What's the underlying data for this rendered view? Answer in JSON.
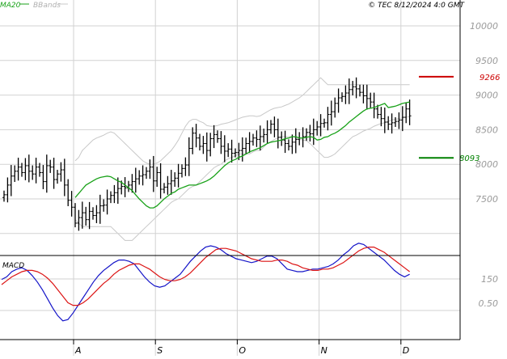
{
  "header": {
    "ma_label": "MA20",
    "bb_label": "BBands",
    "copyright": "© TEC 8/12/2024 4:0 GMT"
  },
  "colors": {
    "ma": "#19a219",
    "bbands": "#c8c8c8",
    "bars": "#000000",
    "macd_line": "#1414c8",
    "macd_signal": "#dc1414",
    "resistance": "#cc0000",
    "support": "#008000",
    "grid": "#d2d2d2",
    "axis_text": "#999999"
  },
  "chart_data": [
    {
      "type": "ohlc",
      "title": "",
      "y_ticks": [
        7500,
        8000,
        8500,
        9000,
        9500,
        10000
      ],
      "y_tick_labels": [
        "7500",
        "8000",
        "8500",
        "9000",
        "9500",
        "10000"
      ],
      "ylim": [
        6900,
        10400
      ],
      "x_ticks": [
        {
          "label": "A",
          "index": 20
        },
        {
          "label": "S",
          "index": 43
        },
        {
          "label": "O",
          "index": 66
        },
        {
          "label": "N",
          "index": 89
        },
        {
          "label": "D",
          "index": 112
        }
      ],
      "levels": [
        {
          "name": "resistance",
          "value": 9266,
          "label": "9266"
        },
        {
          "name": "support",
          "value": 8093,
          "label": "8093"
        }
      ],
      "close": [
        7560,
        7700,
        7830,
        7900,
        7960,
        7880,
        7980,
        7900,
        7860,
        7960,
        7880,
        7750,
        7980,
        7960,
        7780,
        7860,
        7920,
        7700,
        7480,
        7380,
        7150,
        7230,
        7300,
        7200,
        7320,
        7260,
        7300,
        7400,
        7410,
        7500,
        7550,
        7590,
        7650,
        7680,
        7660,
        7700,
        7750,
        7790,
        7830,
        7850,
        7900,
        7960,
        7760,
        7880,
        7640,
        7670,
        7720,
        7760,
        7800,
        7870,
        7940,
        7990,
        8230,
        8450,
        8380,
        8260,
        8300,
        8200,
        8370,
        8430,
        8370,
        8260,
        8190,
        8220,
        8160,
        8170,
        8200,
        8230,
        8300,
        8330,
        8380,
        8360,
        8400,
        8430,
        8500,
        8580,
        8500,
        8390,
        8350,
        8300,
        8260,
        8320,
        8360,
        8380,
        8400,
        8460,
        8440,
        8500,
        8540,
        8590,
        8600,
        8720,
        8760,
        8880,
        8960,
        8980,
        9030,
        9080,
        9120,
        9090,
        9040,
        8990,
        8950,
        8900,
        8800,
        8720,
        8660,
        8610,
        8580,
        8600,
        8620,
        8640,
        8680,
        8800,
        8700
      ],
      "ma20": [
        7520,
        7580,
        7640,
        7700,
        7730,
        7760,
        7790,
        7810,
        7820,
        7830,
        7820,
        7790,
        7760,
        7740,
        7700,
        7660,
        7620,
        7560,
        7500,
        7450,
        7400,
        7370,
        7370,
        7400,
        7450,
        7500,
        7540,
        7580,
        7600,
        7640,
        7660,
        7680,
        7700,
        7700,
        7700,
        7720,
        7740,
        7760,
        7790,
        7830,
        7880,
        7930,
        7980,
        8020,
        8050,
        8070,
        8100,
        8120,
        8150,
        8180,
        8200,
        8220,
        8240,
        8270,
        8300,
        8320,
        8330,
        8340,
        8350,
        8370,
        8380,
        8400,
        8400,
        8380,
        8380,
        8390,
        8400,
        8390,
        8350,
        8360,
        8390,
        8400,
        8430,
        8450,
        8480,
        8520,
        8560,
        8610,
        8650,
        8690,
        8730,
        8770,
        8800,
        8810,
        8820,
        8840,
        8860,
        8880,
        8820,
        8830,
        8840,
        8860,
        8880,
        8890,
        8900
      ],
      "bb_upper": [
        8050,
        8100,
        8200,
        8250,
        8300,
        8350,
        8380,
        8400,
        8420,
        8450,
        8470,
        8450,
        8400,
        8350,
        8300,
        8250,
        8200,
        8150,
        8100,
        8050,
        8020,
        8000,
        8000,
        8020,
        8050,
        8100,
        8150,
        8200,
        8270,
        8350,
        8450,
        8550,
        8620,
        8650,
        8650,
        8620,
        8600,
        8560,
        8550,
        8550,
        8560,
        8580,
        8590,
        8600,
        8620,
        8640,
        8660,
        8680,
        8690,
        8700,
        8700,
        8690,
        8700,
        8730,
        8760,
        8790,
        8810,
        8820,
        8830,
        8850,
        8870,
        8900,
        8930,
        8960,
        9000,
        9050,
        9100,
        9150,
        9200,
        9250,
        9200,
        9150,
        9150,
        9150,
        9150,
        9150,
        9150,
        9150,
        9150,
        9150,
        9150,
        9150,
        9150,
        9150,
        9150,
        9150,
        9150,
        9150,
        9150,
        9150,
        9150,
        9150,
        9150,
        9150,
        9150
      ],
      "bb_lower": [
        7200,
        7150,
        7100,
        7100,
        7100,
        7100,
        7100,
        7100,
        7100,
        7100,
        7100,
        7050,
        7000,
        6950,
        6900,
        6900,
        6900,
        6950,
        7000,
        7050,
        7100,
        7150,
        7200,
        7250,
        7300,
        7350,
        7400,
        7450,
        7480,
        7500,
        7550,
        7600,
        7650,
        7680,
        7700,
        7750,
        7800,
        7850,
        7900,
        7950,
        7980,
        8000,
        8050,
        8080,
        8100,
        8120,
        8150,
        8150,
        8150,
        8150,
        8180,
        8200,
        8200,
        8250,
        8300,
        8330,
        8360,
        8380,
        8400,
        8400,
        8400,
        8400,
        8380,
        8360,
        8350,
        8340,
        8300,
        8250,
        8200,
        8150,
        8100,
        8100,
        8120,
        8150,
        8200,
        8250,
        8300,
        8350,
        8400,
        8420,
        8450,
        8480,
        8500,
        8520,
        8550,
        8570,
        8590,
        8600,
        8620,
        8640,
        8650,
        8660,
        8670,
        8680,
        8690
      ],
      "ma_start_index": 20
    },
    {
      "type": "line",
      "title": "",
      "label": "MACD",
      "y_tick_labels": [
        "150",
        "0.50"
      ],
      "series": [
        {
          "role": "macd",
          "values": [
            1.0,
            1.2,
            1.6,
            1.8,
            1.9,
            1.7,
            1.3,
            0.8,
            0.2,
            -0.5,
            -1.2,
            -1.8,
            -2.2,
            -2.1,
            -1.6,
            -1.0,
            -0.4,
            0.2,
            0.8,
            1.3,
            1.7,
            2.0,
            2.3,
            2.5,
            2.5,
            2.4,
            2.2,
            1.7,
            1.2,
            0.8,
            0.5,
            0.4,
            0.5,
            0.8,
            1.1,
            1.4,
            1.9,
            2.4,
            2.8,
            3.2,
            3.5,
            3.6,
            3.5,
            3.3,
            3.0,
            2.8,
            2.6,
            2.5,
            2.4,
            2.3,
            2.4,
            2.6,
            2.8,
            2.8,
            2.6,
            2.2,
            1.8,
            1.7,
            1.6,
            1.6,
            1.7,
            1.8,
            1.8,
            1.9,
            2.0,
            2.2,
            2.5,
            2.9,
            3.2,
            3.6,
            3.8,
            3.7,
            3.4,
            3.1,
            2.8,
            2.5,
            2.1,
            1.7,
            1.4,
            1.2,
            1.4
          ]
        },
        {
          "role": "signal",
          "values": [
            0.6,
            0.9,
            1.2,
            1.4,
            1.6,
            1.7,
            1.7,
            1.6,
            1.4,
            1.1,
            0.7,
            0.2,
            -0.3,
            -0.8,
            -1.0,
            -1.0,
            -0.8,
            -0.5,
            -0.1,
            0.3,
            0.7,
            1.0,
            1.4,
            1.7,
            1.9,
            2.1,
            2.2,
            2.2,
            2.0,
            1.8,
            1.5,
            1.2,
            1.0,
            0.9,
            0.9,
            1.0,
            1.2,
            1.5,
            1.9,
            2.3,
            2.7,
            3.0,
            3.3,
            3.4,
            3.4,
            3.3,
            3.2,
            3.0,
            2.8,
            2.6,
            2.5,
            2.4,
            2.4,
            2.4,
            2.5,
            2.5,
            2.4,
            2.2,
            2.1,
            1.9,
            1.8,
            1.7,
            1.7,
            1.8,
            1.8,
            1.9,
            2.1,
            2.3,
            2.6,
            2.9,
            3.2,
            3.4,
            3.5,
            3.5,
            3.3,
            3.1,
            2.8,
            2.5,
            2.2,
            1.9,
            1.6
          ]
        }
      ]
    }
  ]
}
